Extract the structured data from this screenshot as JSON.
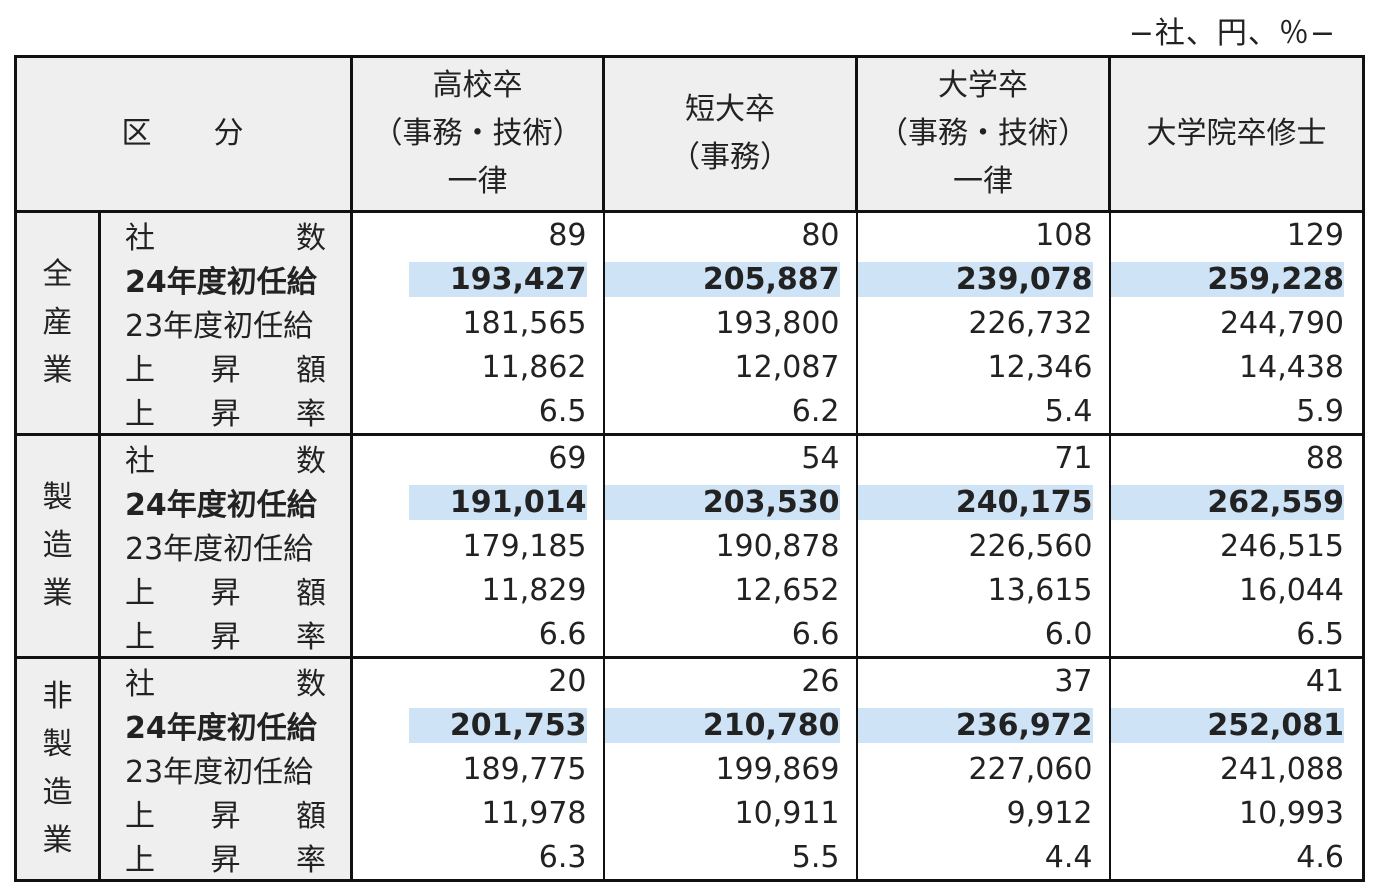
{
  "unit_note": "−社、円、％−",
  "header": {
    "kubun": [
      "区",
      "分"
    ],
    "columns": [
      {
        "lines": [
          "高校卒",
          "（事務・技術）",
          "一律"
        ]
      },
      {
        "lines": [
          "短大卒",
          "（事務）"
        ]
      },
      {
        "lines": [
          "大学卒",
          "（事務・技術）",
          "一律"
        ]
      },
      {
        "lines": [
          "大学院卒修士"
        ]
      }
    ]
  },
  "row_labels": [
    {
      "parts": [
        "社",
        "数"
      ],
      "bold": false
    },
    {
      "parts": [
        "24年度初任給"
      ],
      "bold": true
    },
    {
      "parts": [
        "23年度初任給"
      ],
      "bold": false
    },
    {
      "parts": [
        "上",
        "昇",
        "額"
      ],
      "bold": false
    },
    {
      "parts": [
        "上",
        "昇",
        "率"
      ],
      "bold": false
    }
  ],
  "groups": [
    {
      "name_chars": [
        "全",
        "産",
        "業"
      ],
      "rows": [
        [
          "89",
          "80",
          "108",
          "129"
        ],
        [
          "193,427",
          "205,887",
          "239,078",
          "259,228"
        ],
        [
          "181,565",
          "193,800",
          "226,732",
          "244,790"
        ],
        [
          "11,862",
          "12,087",
          "12,346",
          "14,438"
        ],
        [
          "6.5",
          "6.2",
          "5.4",
          "5.9"
        ]
      ]
    },
    {
      "name_chars": [
        "製",
        "造",
        "業"
      ],
      "rows": [
        [
          "69",
          "54",
          "71",
          "88"
        ],
        [
          "191,014",
          "203,530",
          "240,175",
          "262,559"
        ],
        [
          "179,185",
          "190,878",
          "226,560",
          "246,515"
        ],
        [
          "11,829",
          "12,652",
          "13,615",
          "16,044"
        ],
        [
          "6.6",
          "6.6",
          "6.0",
          "6.5"
        ]
      ]
    },
    {
      "name_chars": [
        "非",
        "製",
        "造",
        "業"
      ],
      "rows": [
        [
          "20",
          "26",
          "37",
          "41"
        ],
        [
          "201,753",
          "210,780",
          "236,972",
          "252,081"
        ],
        [
          "189,775",
          "199,869",
          "227,060",
          "241,088"
        ],
        [
          "11,978",
          "10,911",
          "9,912",
          "10,993"
        ],
        [
          "6.3",
          "5.5",
          "4.4",
          "4.6"
        ]
      ]
    }
  ],
  "colors": {
    "header_bg": "#efefef",
    "highlight": "#cfe3f7",
    "border": "#111111"
  }
}
